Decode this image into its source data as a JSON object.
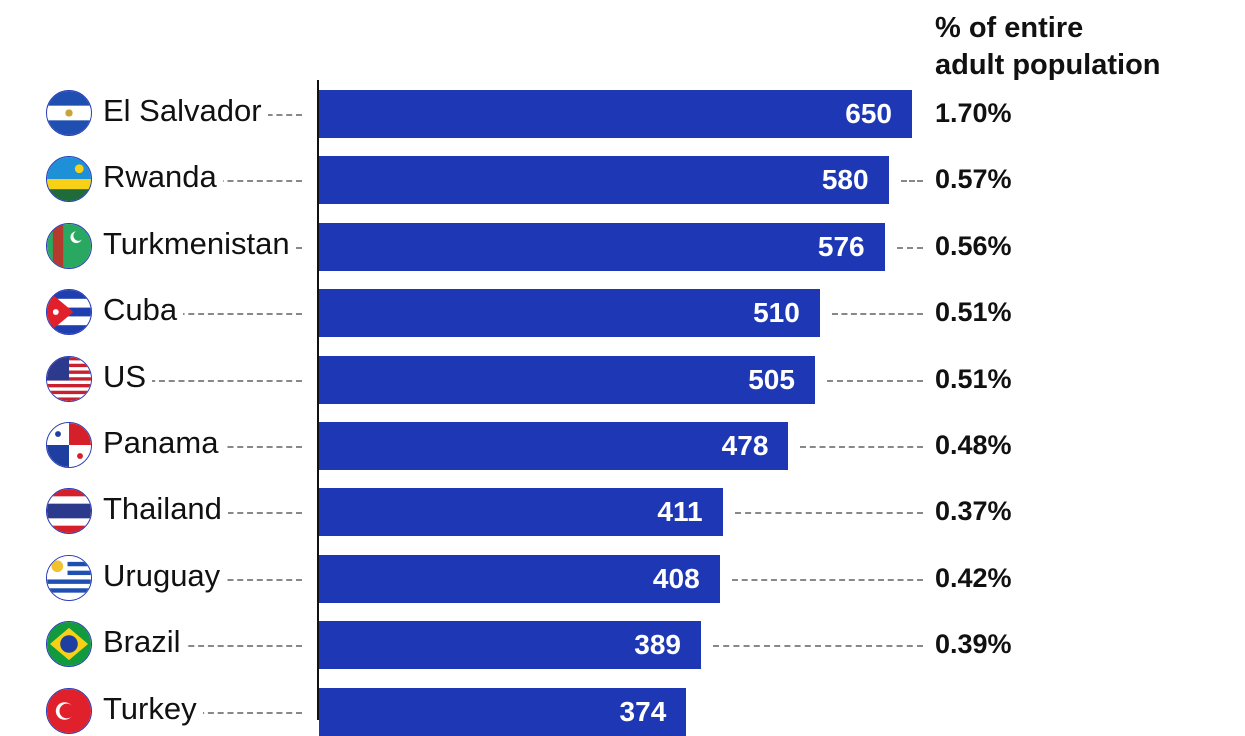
{
  "chart_data": {
    "type": "bar",
    "orientation": "horizontal",
    "value_column_label": "% of entire adult population",
    "categories": [
      "El Salvador",
      "Rwanda",
      "Turkmenistan",
      "Cuba",
      "US",
      "Panama",
      "Thailand",
      "Uruguay",
      "Brazil",
      "Turkey"
    ],
    "values": [
      650,
      580,
      576,
      510,
      505,
      478,
      411,
      408,
      389,
      374
    ],
    "percentages": [
      "1.70%",
      "0.57%",
      "0.56%",
      "0.51%",
      "0.51%",
      "0.48%",
      "0.37%",
      "0.42%",
      "0.39%",
      null
    ],
    "bar_color": "#1e38b5",
    "grid": false
  },
  "header": {
    "line1": "% of entire",
    "line2": "adult population"
  },
  "flags": [
    "el-salvador-flag",
    "rwanda-flag",
    "turkmenistan-flag",
    "cuba-flag",
    "us-flag",
    "panama-flag",
    "thailand-flag",
    "uruguay-flag",
    "brazil-flag",
    "turkey-flag"
  ]
}
